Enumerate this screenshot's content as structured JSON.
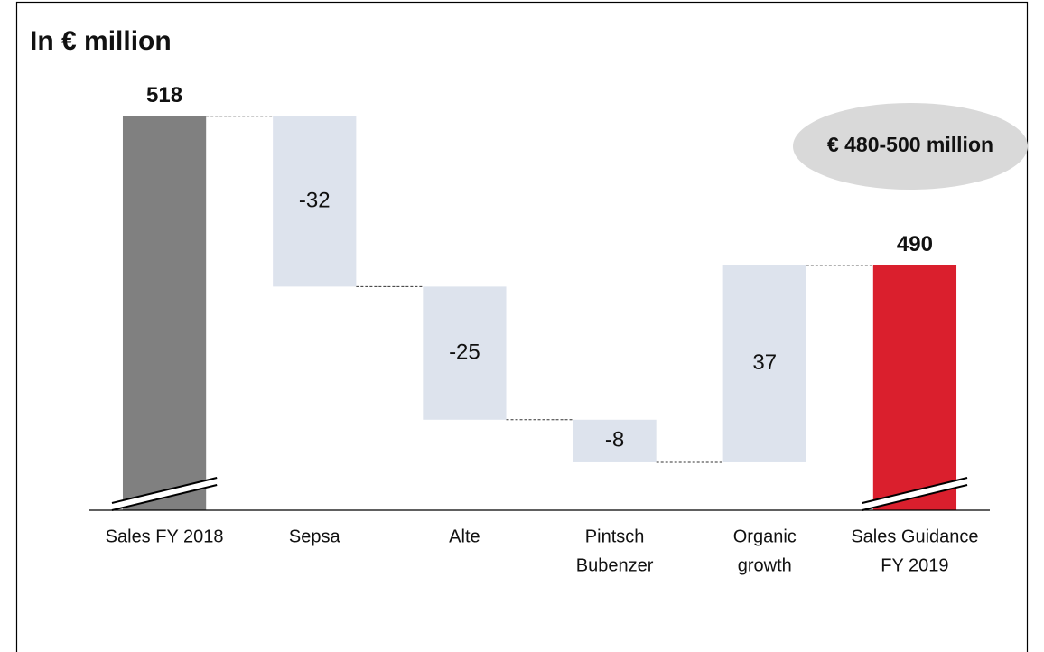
{
  "chart_data": {
    "type": "waterfall",
    "title": "In € million",
    "categories": [
      [
        "Sales FY 2018"
      ],
      [
        "Sepsa"
      ],
      [
        "Alte"
      ],
      [
        "Pintsch",
        "Bubenzer"
      ],
      [
        "Organic",
        "growth"
      ],
      [
        "Sales Guidance",
        "FY 2019"
      ]
    ],
    "values": [
      518,
      -32,
      -25,
      -8,
      37,
      490
    ],
    "measure": [
      "absolute",
      "relative",
      "relative",
      "relative",
      "relative",
      "total"
    ],
    "colors": [
      "#808080",
      "#dde3ed",
      "#dde3ed",
      "#dde3ed",
      "#dde3ed",
      "#da1f2d"
    ],
    "ylim": [
      444,
      530
    ],
    "annotation": "€ 480-500 million"
  }
}
